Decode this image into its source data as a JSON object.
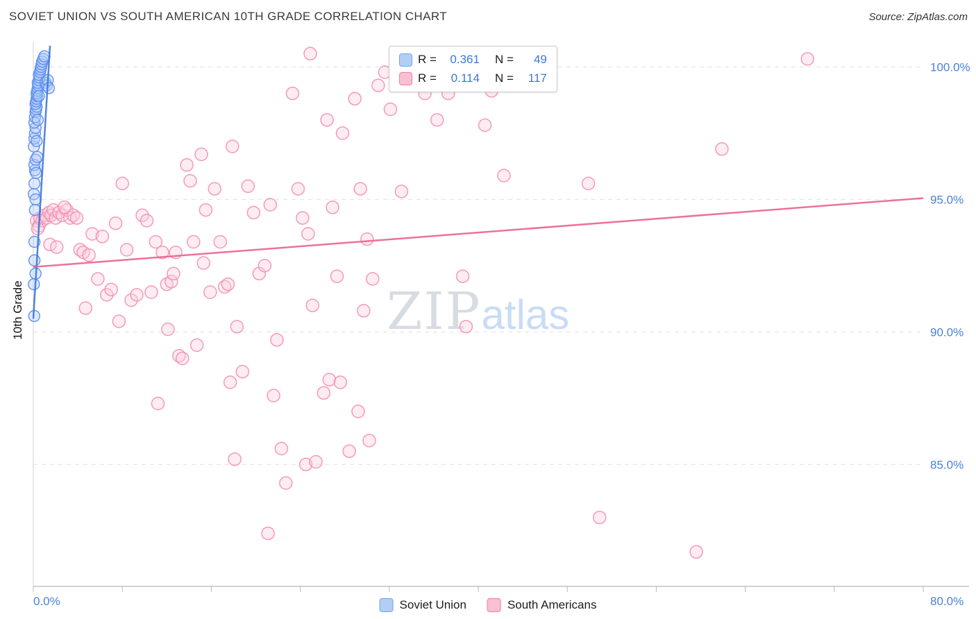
{
  "header": {
    "title": "SOVIET UNION VS SOUTH AMERICAN 10TH GRADE CORRELATION CHART",
    "source": "Source: ZipAtlas.com"
  },
  "watermark": {
    "part1": "ZIP",
    "part2": "atlas"
  },
  "stats_legend": {
    "series": [
      {
        "r_label": "R =",
        "r_value": "0.361",
        "n_label": "N =",
        "n_value": "49",
        "swatch": "#b3cef5",
        "swatch_border": "#6fa1e8"
      },
      {
        "r_label": "R =",
        "r_value": "0.114",
        "n_label": "N =",
        "n_value": "117",
        "swatch": "#f9c0d4",
        "swatch_border": "#f07ba6"
      }
    ]
  },
  "bottom_legend": {
    "items": [
      {
        "label": "Soviet Union",
        "swatch": "#b3cef5",
        "swatch_border": "#6fa1e8"
      },
      {
        "label": "South Americans",
        "swatch": "#f9c0d4",
        "swatch_border": "#f07ba6"
      }
    ]
  },
  "axes": {
    "y_label": "10th Grade",
    "x_ticks": [
      {
        "value": 0,
        "label": "0.0%"
      },
      {
        "value": 80,
        "label": "80.0%"
      }
    ],
    "y_ticks": [
      {
        "value": 100,
        "label": "100.0%"
      },
      {
        "value": 95,
        "label": "95.0%"
      },
      {
        "value": 90,
        "label": "90.0%"
      },
      {
        "value": 85,
        "label": "85.0%"
      }
    ]
  },
  "chart_data": {
    "type": "scatter",
    "title": "SOVIET UNION VS SOUTH AMERICAN 10TH GRADE CORRELATION CHART",
    "xlabel": "",
    "ylabel": "10th Grade",
    "xlim": [
      0,
      80
    ],
    "ylim": [
      80.4,
      100.9
    ],
    "grid": "horizontal-dashed",
    "legend_position": "top-center",
    "series": [
      {
        "name": "Soviet Union",
        "color": "#5b8def",
        "fill": "#aecbfa",
        "r": 0.361,
        "n": 49,
        "points": [
          [
            0.05,
            91.8
          ],
          [
            0.08,
            90.6
          ],
          [
            0.1,
            92.7
          ],
          [
            0.05,
            95.2
          ],
          [
            0.1,
            95.6
          ],
          [
            0.15,
            96.1
          ],
          [
            0.1,
            96.3
          ],
          [
            0.2,
            96.5
          ],
          [
            0.05,
            97.0
          ],
          [
            0.1,
            97.3
          ],
          [
            0.15,
            97.5
          ],
          [
            0.2,
            97.7
          ],
          [
            0.1,
            97.9
          ],
          [
            0.15,
            98.1
          ],
          [
            0.2,
            98.3
          ],
          [
            0.25,
            98.4
          ],
          [
            0.3,
            98.5
          ],
          [
            0.2,
            98.6
          ],
          [
            0.25,
            98.7
          ],
          [
            0.3,
            98.8
          ],
          [
            0.35,
            98.9
          ],
          [
            0.3,
            99.0
          ],
          [
            0.35,
            99.1
          ],
          [
            0.4,
            99.2
          ],
          [
            0.45,
            99.3
          ],
          [
            0.4,
            99.4
          ],
          [
            0.5,
            99.5
          ],
          [
            0.55,
            99.6
          ],
          [
            0.5,
            99.7
          ],
          [
            0.6,
            99.8
          ],
          [
            0.65,
            99.9
          ],
          [
            0.7,
            100.0
          ],
          [
            0.75,
            100.1
          ],
          [
            0.8,
            100.2
          ],
          [
            0.9,
            100.3
          ],
          [
            1.0,
            100.4
          ],
          [
            1.1,
            99.4
          ],
          [
            1.2,
            99.3
          ],
          [
            1.3,
            99.5
          ],
          [
            1.4,
            99.2
          ],
          [
            0.3,
            97.2
          ],
          [
            0.2,
            95.0
          ],
          [
            0.15,
            94.6
          ],
          [
            0.4,
            98.0
          ],
          [
            0.5,
            98.9
          ],
          [
            0.35,
            96.6
          ],
          [
            0.25,
            96.0
          ],
          [
            0.1,
            93.4
          ],
          [
            0.2,
            92.2
          ]
        ]
      },
      {
        "name": "South Americans",
        "color": "#f48fb1",
        "fill": "#fbd0df",
        "r": 0.114,
        "n": 117,
        "points": [
          [
            0.3,
            94.2
          ],
          [
            0.5,
            94.0
          ],
          [
            0.6,
            94.3
          ],
          [
            0.8,
            94.2
          ],
          [
            1.0,
            94.4
          ],
          [
            1.2,
            94.3
          ],
          [
            1.4,
            94.5
          ],
          [
            1.6,
            94.4
          ],
          [
            1.8,
            94.6
          ],
          [
            2.0,
            94.3
          ],
          [
            2.3,
            94.5
          ],
          [
            2.6,
            94.4
          ],
          [
            3.0,
            94.6
          ],
          [
            3.3,
            94.3
          ],
          [
            3.6,
            94.4
          ],
          [
            0.4,
            93.9
          ],
          [
            1.5,
            93.3
          ],
          [
            2.1,
            93.2
          ],
          [
            2.8,
            94.7
          ],
          [
            3.9,
            94.3
          ],
          [
            4.2,
            93.1
          ],
          [
            4.5,
            93.0
          ],
          [
            5.0,
            92.9
          ],
          [
            4.7,
            90.9
          ],
          [
            5.3,
            93.7
          ],
          [
            5.8,
            92.0
          ],
          [
            6.2,
            93.6
          ],
          [
            6.6,
            91.4
          ],
          [
            7.0,
            91.6
          ],
          [
            7.4,
            94.1
          ],
          [
            7.7,
            90.4
          ],
          [
            8.0,
            95.6
          ],
          [
            8.4,
            93.1
          ],
          [
            8.8,
            91.2
          ],
          [
            9.3,
            91.4
          ],
          [
            9.8,
            94.4
          ],
          [
            10.2,
            94.2
          ],
          [
            10.6,
            91.5
          ],
          [
            11.0,
            93.4
          ],
          [
            11.2,
            87.3
          ],
          [
            11.6,
            93.0
          ],
          [
            12.0,
            91.8
          ],
          [
            12.4,
            91.9
          ],
          [
            12.1,
            90.1
          ],
          [
            12.8,
            93.0
          ],
          [
            13.1,
            89.1
          ],
          [
            13.4,
            89.0
          ],
          [
            12.6,
            92.2
          ],
          [
            13.8,
            96.3
          ],
          [
            14.1,
            95.7
          ],
          [
            14.4,
            93.4
          ],
          [
            14.7,
            89.5
          ],
          [
            15.1,
            96.7
          ],
          [
            15.5,
            94.6
          ],
          [
            15.3,
            92.6
          ],
          [
            15.9,
            91.5
          ],
          [
            16.3,
            95.4
          ],
          [
            16.8,
            93.4
          ],
          [
            17.2,
            91.7
          ],
          [
            17.5,
            91.8
          ],
          [
            17.9,
            97.0
          ],
          [
            18.3,
            90.2
          ],
          [
            17.7,
            88.1
          ],
          [
            18.8,
            88.5
          ],
          [
            18.1,
            85.2
          ],
          [
            19.3,
            95.5
          ],
          [
            19.8,
            94.5
          ],
          [
            20.3,
            92.2
          ],
          [
            20.8,
            92.5
          ],
          [
            21.3,
            94.8
          ],
          [
            21.9,
            89.7
          ],
          [
            21.6,
            87.6
          ],
          [
            22.3,
            85.6
          ],
          [
            21.1,
            82.4
          ],
          [
            22.7,
            84.3
          ],
          [
            23.3,
            99.0
          ],
          [
            23.8,
            95.4
          ],
          [
            24.2,
            94.3
          ],
          [
            24.7,
            93.7
          ],
          [
            25.1,
            91.0
          ],
          [
            24.5,
            85.0
          ],
          [
            25.4,
            85.1
          ],
          [
            24.9,
            100.5
          ],
          [
            26.4,
            98.0
          ],
          [
            26.9,
            94.7
          ],
          [
            27.3,
            92.1
          ],
          [
            26.6,
            88.2
          ],
          [
            26.1,
            87.7
          ],
          [
            27.8,
            97.5
          ],
          [
            28.4,
            85.5
          ],
          [
            27.6,
            88.1
          ],
          [
            28.9,
            98.8
          ],
          [
            29.4,
            95.4
          ],
          [
            30.0,
            93.5
          ],
          [
            30.5,
            92.0
          ],
          [
            29.7,
            90.8
          ],
          [
            29.2,
            87.0
          ],
          [
            30.2,
            85.9
          ],
          [
            31.0,
            99.3
          ],
          [
            31.6,
            99.8
          ],
          [
            32.1,
            98.4
          ],
          [
            32.6,
            100.2
          ],
          [
            33.1,
            95.3
          ],
          [
            35.2,
            99.0
          ],
          [
            36.3,
            98.0
          ],
          [
            36.6,
            100.0
          ],
          [
            37.3,
            99.0
          ],
          [
            38.6,
            92.1
          ],
          [
            38.9,
            90.2
          ],
          [
            40.6,
            97.8
          ],
          [
            41.2,
            99.1
          ],
          [
            42.3,
            95.9
          ],
          [
            49.9,
            95.6
          ],
          [
            50.9,
            83.0
          ],
          [
            59.6,
            81.7
          ],
          [
            61.9,
            96.9
          ],
          [
            69.6,
            100.3
          ]
        ]
      }
    ],
    "trend_lines": [
      {
        "series": "Soviet Union",
        "color": "#3c78d8",
        "x1": 0.0,
        "y1": 90.5,
        "x2": 1.5,
        "y2": 100.8
      },
      {
        "series": "South Americans",
        "color": "#e9638e",
        "x1": 0.0,
        "y1": 92.45,
        "x2": 80.0,
        "y2": 95.05
      }
    ]
  }
}
